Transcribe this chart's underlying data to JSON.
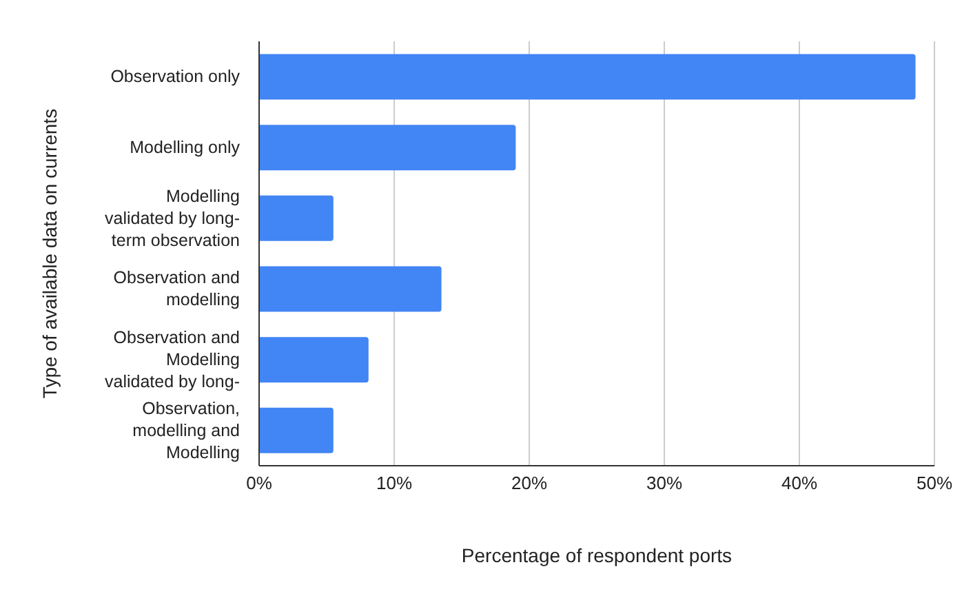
{
  "chart_data": {
    "type": "bar",
    "orientation": "horizontal",
    "xlabel": "Percentage of respondent ports",
    "ylabel": "Type of available data on currents",
    "categories": [
      "Observation only",
      "Modelling only",
      "Modelling validated by long-term observation",
      "Observation and modelling",
      "Observation and Modelling validated by long-",
      "Observation, modelling and Modelling"
    ],
    "values": [
      48.6,
      19,
      5.5,
      13.5,
      8.1,
      5.5
    ],
    "color": "#4285f4",
    "xlim": [
      0,
      50
    ],
    "xticks": [
      {
        "value": 0,
        "label": "0%"
      },
      {
        "value": 10,
        "label": "10%"
      },
      {
        "value": 20,
        "label": "20%"
      },
      {
        "value": 30,
        "label": "30%"
      },
      {
        "value": 40,
        "label": "40%"
      },
      {
        "value": 50,
        "label": "50%"
      }
    ],
    "grid": "x",
    "legend": false
  }
}
